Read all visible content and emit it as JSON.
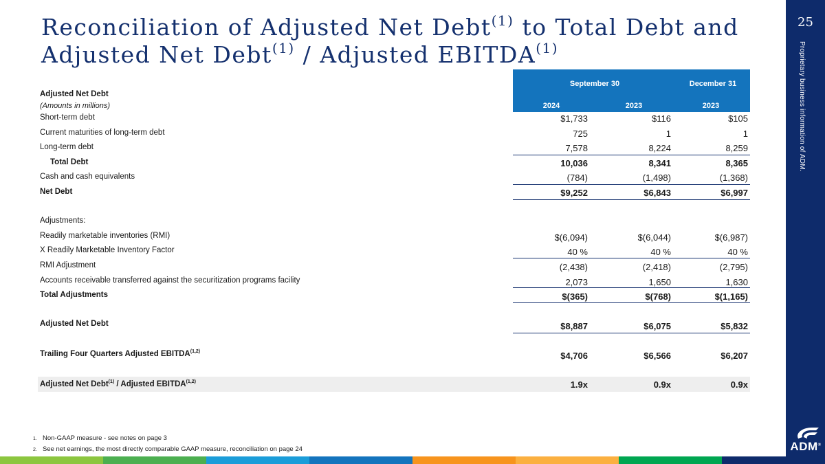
{
  "title": {
    "part1": "Reconciliation of Adjusted Net Debt",
    "sup1": "(1)",
    "part2": " to Total Debt and",
    "part3": "Adjusted Net Debt",
    "sup2": "(1)",
    "part4": " / Adjusted EBITDA",
    "sup3": "(1)"
  },
  "page_number": "25",
  "sidebar_note": "Proprietary business information of ADM.",
  "logo_text": "ADM",
  "logo_mark": "®",
  "table": {
    "heading": "Adjusted Net Debt",
    "subheading": "(Amounts in millions)",
    "group1": "September 30",
    "group2": "December 31",
    "years": [
      "2024",
      "2023",
      "2023"
    ],
    "rows": [
      {
        "label": "Short-term debt",
        "values": [
          "$1,733",
          "$116",
          "$105"
        ]
      },
      {
        "label": "Current maturities of long-term debt",
        "values": [
          "725",
          "1",
          "1"
        ]
      },
      {
        "label": "Long-term debt",
        "values": [
          "7,578",
          "8,224",
          "8,259"
        ]
      },
      {
        "label": "Total Debt",
        "values": [
          "10,036",
          "8,341",
          "8,365"
        ]
      },
      {
        "label": "Cash and cash equivalents",
        "values": [
          "(784)",
          "(1,498)",
          "(1,368)"
        ]
      },
      {
        "label": "Net Debt",
        "values": [
          "$9,252",
          "$6,843",
          "$6,997"
        ]
      },
      {
        "label": "Adjustments:",
        "values": [
          "",
          "",
          ""
        ]
      },
      {
        "label": "Readily marketable inventories (RMI)",
        "values": [
          "$(6,094)",
          "$(6,044)",
          "$(6,987)"
        ]
      },
      {
        "label": "X Readily Marketable Inventory Factor",
        "values": [
          "40 %",
          "40 %",
          "40 %"
        ]
      },
      {
        "label": "RMI Adjustment",
        "values": [
          "(2,438)",
          "(2,418)",
          "(2,795)"
        ]
      },
      {
        "label": "Accounts receivable transferred against the securitization programs facility",
        "values": [
          "2,073",
          "1,650",
          "1,630"
        ]
      },
      {
        "label": "Total Adjustments",
        "values": [
          "$(365)",
          "$(768)",
          "$(1,165)"
        ]
      },
      {
        "label": "Adjusted Net Debt",
        "values": [
          "$8,887",
          "$6,075",
          "$5,832"
        ]
      },
      {
        "label": "Trailing Four Quarters Adjusted EBITDA",
        "sup": "(1,2)",
        "values": [
          "$4,706",
          "$6,566",
          "$6,207"
        ]
      },
      {
        "label": "Adjusted Net Debt",
        "sup": "(1)",
        "label2": " / Adjusted EBITDA",
        "sup2": "(1,2)",
        "values": [
          "1.9x",
          "0.9x",
          "0.9x"
        ]
      }
    ]
  },
  "footnotes": [
    {
      "num": "1.",
      "text": "Non-GAAP measure - see notes on page 3"
    },
    {
      "num": "2.",
      "text": "See net earnings, the most directly comparable GAAP measure, reconciliation on page 24"
    }
  ],
  "colors": {
    "navy": "#0e2b6b",
    "header_blue": "#1474bd",
    "stripe": [
      "#8cc63f",
      "#4caf50",
      "#1b9dd9",
      "#1474bd",
      "#f7941d",
      "#fbb040",
      "#00a651",
      "#0e2b6b"
    ]
  }
}
